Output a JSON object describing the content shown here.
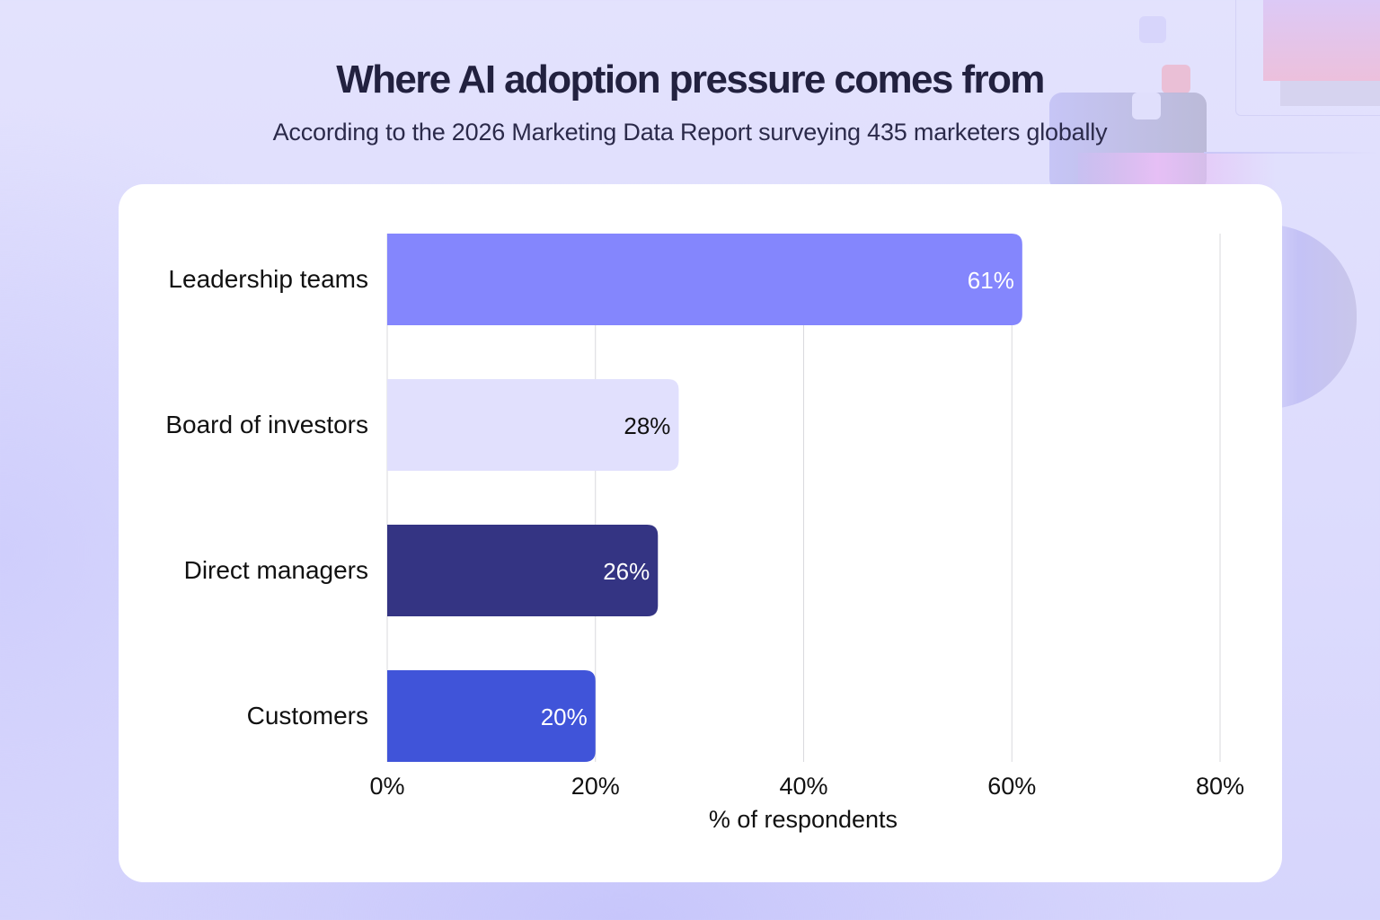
{
  "header": {
    "title": "Where AI adoption pressure comes from",
    "subtitle": "According to the 2026 Marketing Data Report surveying 435 marketers globally"
  },
  "colors": {
    "title": "#22213f",
    "card": "#ffffff",
    "grid": "#d9d9de",
    "label_light": "#ffffff",
    "label_dark": "#111111"
  },
  "chart_data": {
    "type": "bar",
    "orientation": "horizontal",
    "title": "Where AI adoption pressure comes from",
    "subtitle": "According to the 2026 Marketing Data Report surveying 435 marketers globally",
    "categories": [
      "Leadership teams",
      "Board of investors",
      "Direct managers",
      "Customers"
    ],
    "values": [
      61,
      28,
      26,
      20
    ],
    "value_labels": [
      "61%",
      "28%",
      "26%",
      "20%"
    ],
    "bar_colors": [
      "#8486fd",
      "#e1e0fd",
      "#343483",
      "#4054d9"
    ],
    "label_colors": [
      "#ffffff",
      "#111111",
      "#ffffff",
      "#ffffff"
    ],
    "xlabel": "% of respondents",
    "ylabel": "",
    "xlim": [
      0,
      80
    ],
    "xticks": [
      0,
      20,
      40,
      60,
      80
    ],
    "xtick_labels": [
      "0%",
      "20%",
      "40%",
      "60%",
      "80%"
    ],
    "grid": true,
    "legend": "none"
  }
}
